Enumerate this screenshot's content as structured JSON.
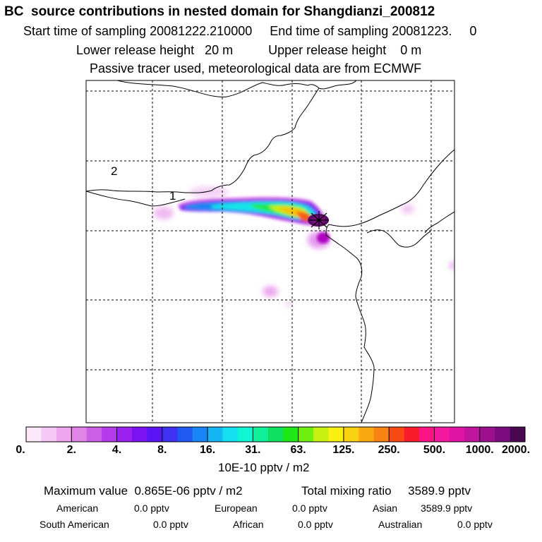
{
  "header": {
    "title": "BC  source contributions in nested domain for Shangdianzi_200812",
    "sampling_line": "Start time of sampling 20081222.210000     End time of sampling 20081223.     0",
    "release_line": "Lower release height   20 m          Upper release height    0 m",
    "tracer_line": "Passive tracer used, meteorological data are from ECMWF"
  },
  "map": {
    "labels": [
      "2",
      "1"
    ],
    "colors": {
      "frame": "#000000",
      "grid": "#000000",
      "coast": "#000000"
    }
  },
  "colorbar": {
    "colors": [
      "#fbe8fb",
      "#f6c8f6",
      "#eea6ee",
      "#e084e6",
      "#cc5fe6",
      "#b43cea",
      "#9a22f0",
      "#7a12f2",
      "#5a14f6",
      "#4030f2",
      "#2058f4",
      "#1a86f6",
      "#16b6f4",
      "#14dff0",
      "#10f6d2",
      "#10f09a",
      "#10e060",
      "#20e818",
      "#70f010",
      "#c8f010",
      "#f8f010",
      "#f8d210",
      "#f8aa10",
      "#f88212",
      "#f84a14",
      "#f81c2a",
      "#fc1484",
      "#f4189e",
      "#e014a4",
      "#c0149e",
      "#9c1090",
      "#7a0c80",
      "#4a0850"
    ],
    "ticks": [
      "0.",
      "2.",
      "4.",
      "8.",
      "16.",
      "31.",
      "63.",
      "125.",
      "250.",
      "500.",
      "1000.",
      "2000."
    ],
    "units": "10E-10 pptv / m2"
  },
  "summary": {
    "max_value": "Maximum value  0.865E-06 pptv / m2",
    "total_mixing_ratio": "Total mixing ratio     3589.9 pptv"
  },
  "regions": [
    {
      "name": "American",
      "value": "0.0 pptv"
    },
    {
      "name": "European",
      "value": "0.0 pptv"
    },
    {
      "name": "Asian",
      "value": "3589.9 pptv"
    },
    {
      "name": "South American",
      "value": "0.0 pptv"
    },
    {
      "name": "African",
      "value": "0.0 pptv"
    },
    {
      "name": "Australian",
      "value": "0.0 pptv"
    }
  ]
}
